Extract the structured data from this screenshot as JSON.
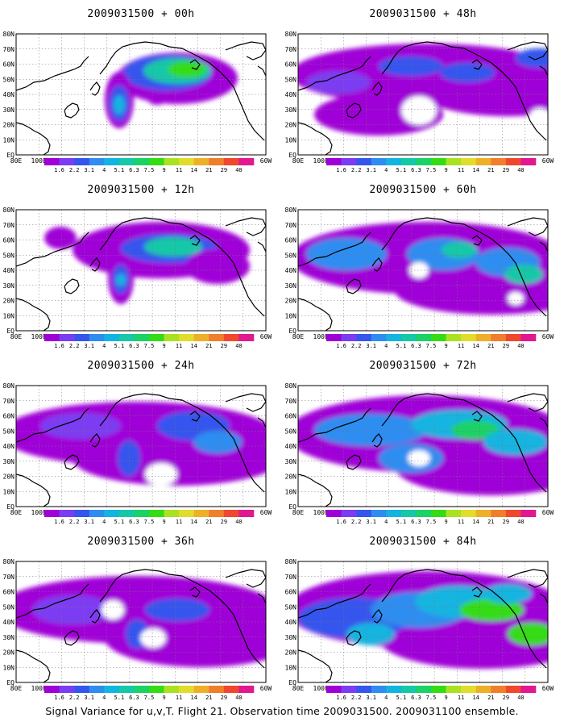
{
  "panels": [
    {
      "title": "2009031500 + 00h"
    },
    {
      "title": "2009031500 + 48h"
    },
    {
      "title": "2009031500 + 12h"
    },
    {
      "title": "2009031500 + 60h"
    },
    {
      "title": "2009031500 + 24h"
    },
    {
      "title": "2009031500 + 72h"
    },
    {
      "title": "2009031500 + 36h"
    },
    {
      "title": "2009031500 + 84h"
    }
  ],
  "lat_labels": [
    "EQ",
    "10N",
    "20N",
    "30N",
    "40N",
    "50N",
    "60N",
    "70N",
    "80N"
  ],
  "lon_labels": [
    "80E",
    "100E",
    "120E",
    "140E",
    "160E",
    "180",
    "160W",
    "140W",
    "120W",
    "100W",
    "80W",
    "60W"
  ],
  "colorbar": {
    "labels": [
      "1.6",
      "2.2",
      "3.1",
      "4",
      "5.1",
      "6.3",
      "7.5",
      "9",
      "11",
      "14",
      "21",
      "29",
      "40"
    ],
    "colors": [
      "#a000d8",
      "#7b3df2",
      "#3555ee",
      "#2f8df0",
      "#14b4e0",
      "#15c8a8",
      "#1ad266",
      "#34dc14",
      "#a8e222",
      "#e2dc2a",
      "#eeb028",
      "#f07e2c",
      "#f0482e",
      "#e21890"
    ]
  },
  "footer": "Signal Variance for u,v,T. Flight 21. Observation time 2009031500. 2009031100 ensemble."
}
